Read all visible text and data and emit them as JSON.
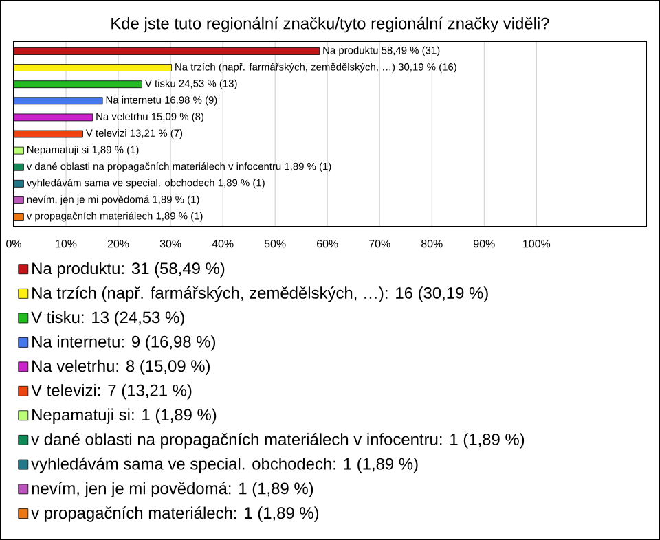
{
  "chart_data": {
    "type": "bar",
    "orientation": "horizontal",
    "title": "Kde jste tuto regionální značku/tyto regionální značky viděli?",
    "categories": [
      null,
      null,
      null,
      null,
      null,
      null,
      null,
      null,
      null,
      null,
      null
    ],
    "series": [
      {
        "name": "Na produktu: 31 (58,49 %)",
        "color": "#c0161a",
        "values": [
          58.49,
          null,
          null,
          null,
          null,
          null,
          null,
          null,
          null,
          null,
          null
        ],
        "value_labels": [
          "Na produktu 58,49 % (31)",
          null,
          null,
          null,
          null,
          null,
          null,
          null,
          null,
          null,
          null
        ]
      },
      {
        "name": "Na trzích (např. farmářských, zemědělských, …): 16 (30,19 %)",
        "color": "#ffee11",
        "values": [
          null,
          30.19,
          null,
          null,
          null,
          null,
          null,
          null,
          null,
          null,
          null
        ],
        "value_labels": [
          null,
          "Na trzích (např. farmářských, zemědělských, …) 30,19 % (16)",
          null,
          null,
          null,
          null,
          null,
          null,
          null,
          null,
          null
        ]
      },
      {
        "name": "V tisku: 13 (24,53 %)",
        "color": "#22bb22",
        "values": [
          null,
          null,
          24.53,
          null,
          null,
          null,
          null,
          null,
          null,
          null,
          null
        ],
        "value_labels": [
          null,
          null,
          "V tisku 24,53 % (13)",
          null,
          null,
          null,
          null,
          null,
          null,
          null,
          null
        ]
      },
      {
        "name": "Na internetu: 9 (16,98 %)",
        "color": "#4477ee",
        "values": [
          null,
          null,
          null,
          16.98,
          null,
          null,
          null,
          null,
          null,
          null,
          null
        ],
        "value_labels": [
          null,
          null,
          null,
          "Na internetu 16,98 % (9)",
          null,
          null,
          null,
          null,
          null,
          null,
          null
        ]
      },
      {
        "name": "Na veletrhu: 8 (15,09 %)",
        "color": "#cc22cc",
        "values": [
          null,
          null,
          null,
          null,
          15.09,
          null,
          null,
          null,
          null,
          null,
          null
        ],
        "value_labels": [
          null,
          null,
          null,
          null,
          "Na veletrhu 15,09 % (8)",
          null,
          null,
          null,
          null,
          null,
          null
        ]
      },
      {
        "name": "V televizi: 7 (13,21 %)",
        "color": "#ee4411",
        "values": [
          null,
          null,
          null,
          null,
          null,
          13.21,
          null,
          null,
          null,
          null,
          null
        ],
        "value_labels": [
          null,
          null,
          null,
          null,
          null,
          "V televizi 13,21 % (7)",
          null,
          null,
          null,
          null,
          null
        ]
      },
      {
        "name": "Nepamatuji si: 1 (1,89 %)",
        "color": "#bbff77",
        "values": [
          null,
          null,
          null,
          null,
          null,
          null,
          1.89,
          null,
          null,
          null,
          null
        ],
        "value_labels": [
          null,
          null,
          null,
          null,
          null,
          null,
          "Nepamatuji si 1,89 % (1)",
          null,
          null,
          null,
          null
        ]
      },
      {
        "name": "v dané oblasti na propagačních materiálech v infocentru: 1 (1,89 %)",
        "color": "#118855",
        "values": [
          null,
          null,
          null,
          null,
          null,
          null,
          null,
          1.89,
          null,
          null,
          null
        ],
        "value_labels": [
          null,
          null,
          null,
          null,
          null,
          null,
          null,
          "v dané oblasti na propagačních materiálech v infocentru 1,89 % (1)",
          null,
          null,
          null
        ]
      },
      {
        "name": "vyhledávám sama ve special. obchodech: 1 (1,89 %)",
        "color": "#227788",
        "values": [
          null,
          null,
          null,
          null,
          null,
          null,
          null,
          null,
          1.89,
          null,
          null
        ],
        "value_labels": [
          null,
          null,
          null,
          null,
          null,
          null,
          null,
          null,
          "vyhledávám sama ve special. obchodech 1,89 % (1)",
          null,
          null
        ]
      },
      {
        "name": "nevím, jen je mi povědomá: 1 (1,89 %)",
        "color": "#bb55bb",
        "values": [
          null,
          null,
          null,
          null,
          null,
          null,
          null,
          null,
          null,
          1.89,
          null
        ],
        "value_labels": [
          null,
          null,
          null,
          null,
          null,
          null,
          null,
          null,
          null,
          "nevím, jen je mi povědomá 1,89 % (1)",
          null
        ]
      },
      {
        "name": "v propagačních materiálech: 1 (1,89 %)",
        "color": "#ee7711",
        "values": [
          null,
          null,
          null,
          null,
          null,
          null,
          null,
          null,
          null,
          null,
          1.89
        ],
        "value_labels": [
          null,
          null,
          null,
          null,
          null,
          null,
          null,
          null,
          null,
          null,
          "v propagačních materiálech 1,89 % (1)"
        ]
      }
    ],
    "xlim": [
      0,
      121
    ],
    "xticks": [
      {
        "value": 0,
        "label": "0%"
      },
      {
        "value": 10,
        "label": "10%"
      },
      {
        "value": 20,
        "label": "20%"
      },
      {
        "value": 30,
        "label": "30%"
      },
      {
        "value": 40,
        "label": "40%"
      },
      {
        "value": 50,
        "label": "50%"
      },
      {
        "value": 60,
        "label": "60%"
      },
      {
        "value": 70,
        "label": "70%"
      },
      {
        "value": 80,
        "label": "80%"
      },
      {
        "value": 90,
        "label": "90%"
      },
      {
        "value": 100,
        "label": "100%"
      }
    ],
    "grid": "x",
    "legend": "bottom"
  }
}
